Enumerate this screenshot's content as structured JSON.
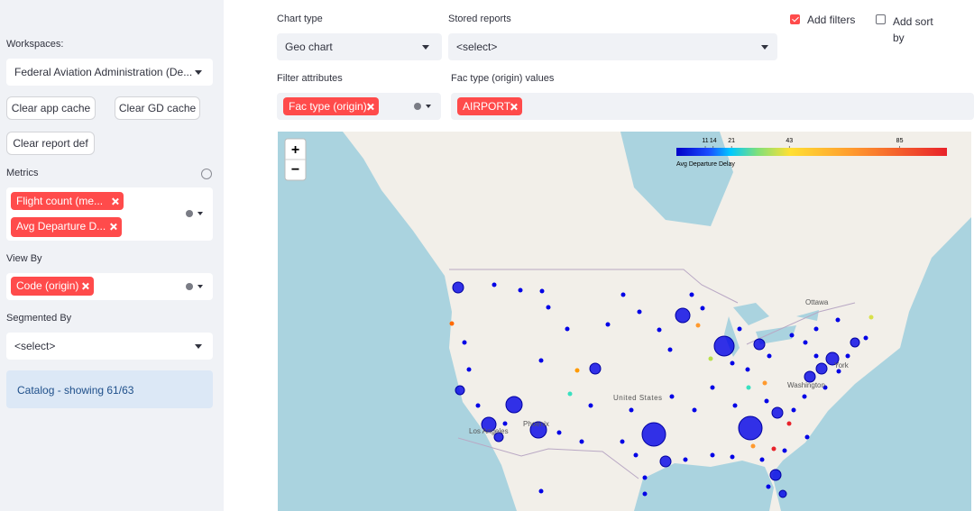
{
  "sidebar": {
    "workspaces_label": "Workspaces:",
    "workspace": "Federal Aviation Administration (De...",
    "buttons": [
      "Clear app cache",
      "Clear GD cache",
      "Clear report def"
    ],
    "metrics_label": "Metrics",
    "metrics": [
      "Flight count (me...",
      "Avg Departure D..."
    ],
    "view_by_label": "View By",
    "view_by": [
      "Code (origin)"
    ],
    "segmented_by_label": "Segmented By",
    "segmented_by": "<select>",
    "catalog": "Catalog - showing 61/63"
  },
  "toolbar": {
    "chart_type_label": "Chart type",
    "chart_type": "Geo chart",
    "stored_reports_label": "Stored reports",
    "stored_reports": "<select>",
    "add_filters": {
      "label": "Add filters",
      "checked": true
    },
    "add_sort": {
      "label": "Add sort by",
      "checked": false
    },
    "filter_attributes_label": "Filter attributes",
    "filter_attributes": [
      "Fac type (origin)"
    ],
    "values_label": "Fac type (origin) values",
    "values": [
      "AIRPORT"
    ]
  },
  "map": {
    "zoom_in": "+",
    "zoom_out": "−",
    "colorbar": {
      "label": "Avg Departure Delay",
      "lim": [
        0,
        103
      ],
      "ticks": [
        11,
        14,
        21,
        43,
        85
      ]
    },
    "labels": [
      "Ottawa",
      "United States",
      "Washington",
      "York",
      "Los Angeles",
      "Phoenix"
    ]
  }
}
